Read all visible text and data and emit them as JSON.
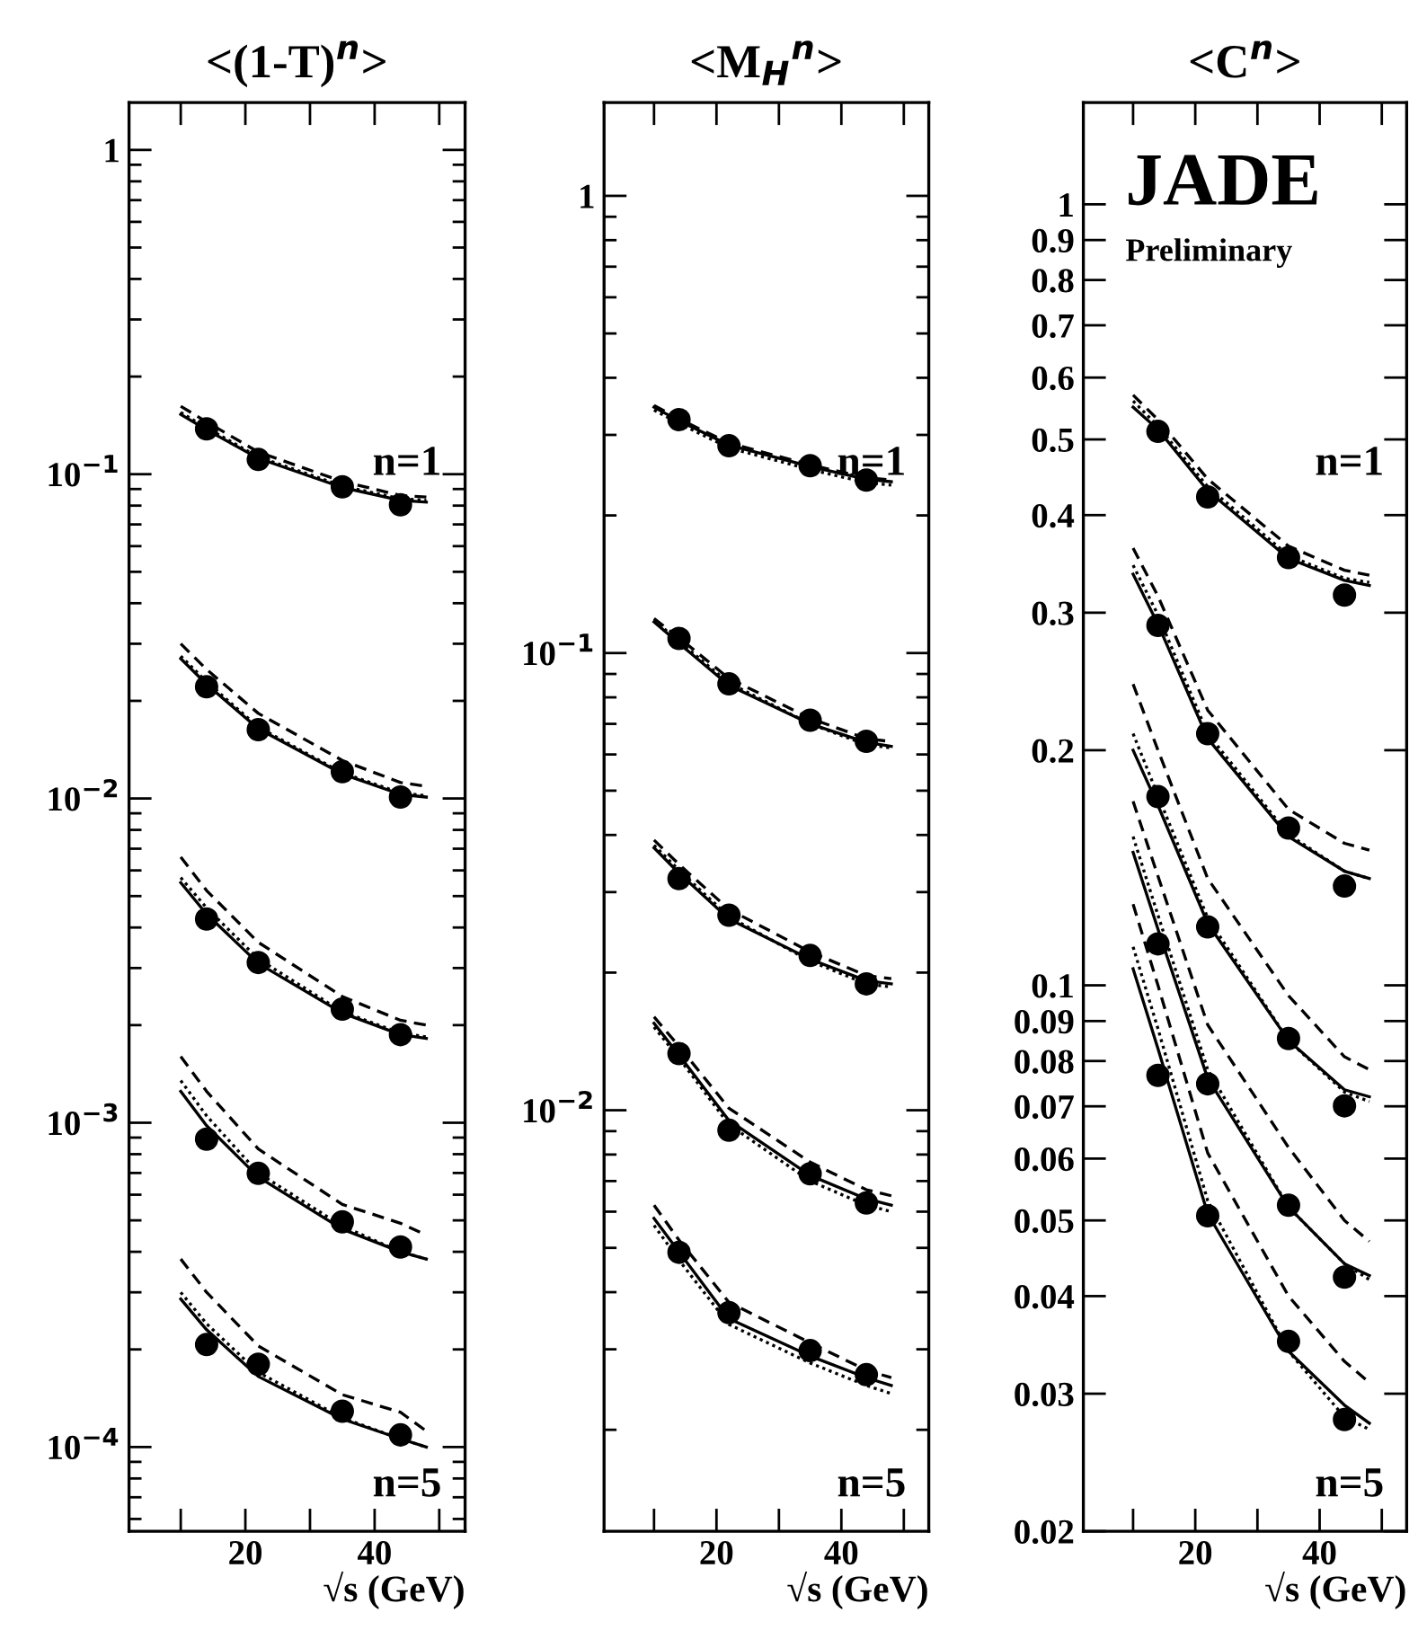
{
  "chart_data": [
    {
      "type": "line",
      "title": "<(1-T)$^{n}$>",
      "xlabel": "√s (GeV)",
      "log": "y",
      "xlim": [
        2,
        54
      ],
      "xticks": [
        {
          "value": 10,
          "label": null
        },
        20,
        {
          "value": 30,
          "label": null
        },
        40,
        {
          "value": 50,
          "label": null
        }
      ],
      "ylim": [
        5.5e-05,
        1.4
      ],
      "yticks": [
        {
          "value": 0.0001,
          "label": "10$^{−4}$"
        },
        {
          "value": 0.001,
          "label": "10$^{−3}$"
        },
        {
          "value": 0.01,
          "label": "10$^{−2}$"
        },
        {
          "value": 0.1,
          "label": "10$^{−1}$"
        },
        1
      ],
      "annotations": [
        "n=1",
        "n=5"
      ],
      "series": [
        {
          "type": "scatter",
          "marker": "circle",
          "color": "#000000",
          "x": [
            14,
            22,
            35,
            44
          ],
          "values": [
            0.138,
            0.111,
            0.0914,
            0.0805
          ]
        },
        {
          "type": "scatter",
          "marker": "circle",
          "color": "#000000",
          "x": [
            14,
            22,
            35,
            44
          ],
          "values": [
            0.0221,
            0.0163,
            0.0121,
            0.0101
          ]
        },
        {
          "type": "scatter",
          "marker": "circle",
          "color": "#000000",
          "x": [
            14,
            22,
            35,
            44
          ],
          "values": [
            0.00425,
            0.00312,
            0.00224,
            0.00187
          ]
        },
        {
          "type": "scatter",
          "marker": "circle",
          "color": "#000000",
          "x": [
            14,
            22,
            35,
            44
          ],
          "values": [
            0.00089,
            0.000698,
            0.000495,
            0.000414
          ]
        },
        {
          "type": "scatter",
          "marker": "circle",
          "color": "#000000",
          "x": [
            14,
            22,
            35,
            44
          ],
          "values": [
            0.000207,
            0.00018,
            0.000129,
            0.000109
          ]
        },
        {
          "line_style": "solid",
          "color": "#000000",
          "x": [
            10,
            14,
            22,
            35,
            44,
            48
          ],
          "values": [
            0.153,
            0.137,
            0.112,
            0.091,
            0.083,
            0.082
          ]
        },
        {
          "line_style": "dashed",
          "color": "#000000",
          "x": [
            10,
            14,
            22,
            35,
            44,
            48
          ],
          "values": [
            0.162,
            0.145,
            0.117,
            0.095,
            0.086,
            0.085
          ]
        },
        {
          "line_style": "dotted",
          "color": "#000000",
          "x": [
            10,
            14,
            22,
            35,
            44,
            48
          ],
          "values": [
            0.155,
            0.139,
            0.113,
            0.092,
            0.084,
            0.083
          ]
        },
        {
          "line_style": "solid",
          "color": "#000000",
          "x": [
            10,
            14,
            22,
            35,
            44,
            48
          ],
          "values": [
            0.027,
            0.0225,
            0.0164,
            0.0119,
            0.0103,
            0.0101
          ]
        },
        {
          "line_style": "dashed",
          "color": "#000000",
          "x": [
            10,
            14,
            22,
            35,
            44,
            48
          ],
          "values": [
            0.03,
            0.025,
            0.0183,
            0.0131,
            0.0112,
            0.0109
          ]
        },
        {
          "line_style": "dotted",
          "color": "#000000",
          "x": [
            10,
            14,
            22,
            35,
            44,
            48
          ],
          "values": [
            0.0275,
            0.0229,
            0.0166,
            0.012,
            0.0104,
            0.0102
          ]
        },
        {
          "line_style": "solid",
          "color": "#000000",
          "x": [
            10,
            14,
            22,
            35,
            44,
            48
          ],
          "values": [
            0.0055,
            0.0044,
            0.0031,
            0.00218,
            0.00187,
            0.00182
          ]
        },
        {
          "line_style": "dashed",
          "color": "#000000",
          "x": [
            10,
            14,
            22,
            35,
            44,
            48
          ],
          "values": [
            0.0066,
            0.0052,
            0.0036,
            0.00245,
            0.00207,
            0.002
          ]
        },
        {
          "line_style": "dotted",
          "color": "#000000",
          "x": [
            10,
            14,
            22,
            35,
            44,
            48
          ],
          "values": [
            0.0057,
            0.0046,
            0.0032,
            0.0022,
            0.00189,
            0.00184
          ]
        },
        {
          "line_style": "solid",
          "color": "#000000",
          "x": [
            10,
            14,
            22,
            35,
            44,
            48
          ],
          "values": [
            0.00125,
            0.00098,
            0.00068,
            0.00047,
            0.0004,
            0.00038
          ]
        },
        {
          "line_style": "dashed",
          "color": "#000000",
          "x": [
            10,
            14,
            22,
            35,
            44,
            48
          ],
          "values": [
            0.0016,
            0.00125,
            0.00083,
            0.00056,
            0.00049,
            0.00045
          ]
        },
        {
          "line_style": "dotted",
          "color": "#000000",
          "x": [
            10,
            14,
            22,
            35,
            44,
            48
          ],
          "values": [
            0.00135,
            0.00105,
            0.0007,
            0.00048,
            0.0004,
            0.00038
          ]
        },
        {
          "line_style": "solid",
          "color": "#000000",
          "x": [
            10,
            14,
            22,
            35,
            44,
            48
          ],
          "values": [
            0.000286,
            0.00023,
            0.000165,
            0.000122,
            0.000106,
            0.0001
          ]
        },
        {
          "line_style": "dashed",
          "color": "#000000",
          "x": [
            10,
            14,
            22,
            35,
            44,
            48
          ],
          "values": [
            0.00038,
            0.0003,
            0.000205,
            0.000145,
            0.000128,
            0.000112
          ]
        },
        {
          "line_style": "dotted",
          "color": "#000000",
          "x": [
            10,
            14,
            22,
            35,
            44,
            48
          ],
          "values": [
            0.0003,
            0.00024,
            0.00017,
            0.000123,
            0.000106,
            0.0001
          ]
        }
      ]
    },
    {
      "type": "line",
      "title": "<M$_{H}$$^{n}$>",
      "xlabel": "√s (GeV)",
      "log": "y",
      "xlim": [
        2,
        54
      ],
      "xticks": [
        {
          "value": 10,
          "label": null
        },
        20,
        {
          "value": 30,
          "label": null
        },
        40,
        {
          "value": 50,
          "label": null
        }
      ],
      "ylim": [
        0.0012,
        1.6
      ],
      "yticks": [
        {
          "value": 0.01,
          "label": "10$^{−2}$"
        },
        {
          "value": 0.1,
          "label": "10$^{−1}$"
        },
        1
      ],
      "annotations": [
        "n=1",
        "n=5"
      ],
      "series": [
        {
          "type": "scatter",
          "marker": "circle",
          "color": "#000000",
          "x": [
            14,
            22,
            35,
            44
          ],
          "values": [
            0.324,
            0.284,
            0.257,
            0.239
          ]
        },
        {
          "type": "scatter",
          "marker": "circle",
          "color": "#000000",
          "x": [
            14,
            22,
            35,
            44
          ],
          "values": [
            0.1076,
            0.0856,
            0.0713,
            0.0641
          ]
        },
        {
          "type": "scatter",
          "marker": "circle",
          "color": "#000000",
          "x": [
            14,
            22,
            35,
            44
          ],
          "values": [
            0.0321,
            0.0267,
            0.0218,
            0.0189
          ]
        },
        {
          "type": "scatter",
          "marker": "circle",
          "color": "#000000",
          "x": [
            14,
            22,
            35,
            44
          ],
          "values": [
            0.0133,
            0.00904,
            0.00726,
            0.00627
          ]
        },
        {
          "type": "scatter",
          "marker": "circle",
          "color": "#000000",
          "x": [
            14,
            22,
            35,
            44
          ],
          "values": [
            0.00489,
            0.00361,
            0.00298,
            0.00264
          ]
        },
        {
          "line_style": "solid",
          "color": "#000000",
          "x": [
            10,
            14,
            22,
            35,
            44,
            48
          ],
          "values": [
            0.345,
            0.322,
            0.285,
            0.256,
            0.24,
            0.237
          ]
        },
        {
          "line_style": "dashed",
          "color": "#000000",
          "x": [
            10,
            14,
            22,
            35,
            44,
            48
          ],
          "values": [
            0.348,
            0.325,
            0.288,
            0.258,
            0.242,
            0.239
          ]
        },
        {
          "line_style": "dotted",
          "color": "#000000",
          "x": [
            10,
            14,
            22,
            35,
            44,
            48
          ],
          "values": [
            0.34,
            0.318,
            0.281,
            0.252,
            0.236,
            0.233
          ]
        },
        {
          "line_style": "solid",
          "color": "#000000",
          "x": [
            10,
            14,
            22,
            35,
            44,
            48
          ],
          "values": [
            0.117,
            0.105,
            0.085,
            0.07,
            0.0638,
            0.0625
          ]
        },
        {
          "line_style": "dashed",
          "color": "#000000",
          "x": [
            10,
            14,
            22,
            35,
            44,
            48
          ],
          "values": [
            0.119,
            0.108,
            0.088,
            0.072,
            0.065,
            0.064
          ]
        },
        {
          "line_style": "dotted",
          "color": "#000000",
          "x": [
            10,
            14,
            22,
            35,
            44,
            48
          ],
          "values": [
            0.118,
            0.106,
            0.086,
            0.07,
            0.063,
            0.062
          ]
        },
        {
          "line_style": "solid",
          "color": "#000000",
          "x": [
            10,
            14,
            22,
            35,
            44,
            48
          ],
          "values": [
            0.0375,
            0.033,
            0.0262,
            0.0214,
            0.0192,
            0.0189
          ]
        },
        {
          "line_style": "dashed",
          "color": "#000000",
          "x": [
            10,
            14,
            22,
            35,
            44,
            48
          ],
          "values": [
            0.039,
            0.0345,
            0.0275,
            0.0222,
            0.0197,
            0.0194
          ]
        },
        {
          "line_style": "dotted",
          "color": "#000000",
          "x": [
            10,
            14,
            22,
            35,
            44,
            48
          ],
          "values": [
            0.038,
            0.0335,
            0.0265,
            0.0212,
            0.0189,
            0.0186
          ]
        },
        {
          "line_style": "solid",
          "color": "#000000",
          "x": [
            10,
            14,
            22,
            35,
            44,
            48
          ],
          "values": [
            0.0155,
            0.0132,
            0.0095,
            0.0072,
            0.0064,
            0.0062
          ]
        },
        {
          "line_style": "dashed",
          "color": "#000000",
          "x": [
            10,
            14,
            22,
            35,
            44,
            48
          ],
          "values": [
            0.016,
            0.0138,
            0.0101,
            0.0077,
            0.0067,
            0.0065
          ]
        },
        {
          "line_style": "dotted",
          "color": "#000000",
          "x": [
            10,
            14,
            22,
            35,
            44,
            48
          ],
          "values": [
            0.0152,
            0.013,
            0.0093,
            0.007,
            0.0062,
            0.006
          ]
        },
        {
          "line_style": "solid",
          "color": "#000000",
          "x": [
            10,
            14,
            22,
            35,
            44,
            48
          ],
          "values": [
            0.0058,
            0.0049,
            0.0035,
            0.0029,
            0.0026,
            0.0025
          ]
        },
        {
          "line_style": "dashed",
          "color": "#000000",
          "x": [
            10,
            14,
            22,
            35,
            44,
            48
          ],
          "values": [
            0.0062,
            0.0052,
            0.0038,
            0.0031,
            0.0027,
            0.0026
          ]
        },
        {
          "line_style": "dotted",
          "color": "#000000",
          "x": [
            10,
            14,
            22,
            35,
            44,
            48
          ],
          "values": [
            0.0056,
            0.0047,
            0.0034,
            0.0028,
            0.0025,
            0.0024
          ]
        }
      ]
    },
    {
      "type": "line",
      "title": "<C$^{n}$>",
      "xlabel": "√s (GeV)",
      "log": "y",
      "xlim": [
        2,
        54
      ],
      "xticks": [
        {
          "value": 10,
          "label": null
        },
        20,
        {
          "value": 30,
          "label": null
        },
        40,
        {
          "value": 50,
          "label": null
        }
      ],
      "ylim": [
        0.02,
        1.35
      ],
      "yticks": [
        0.02,
        0.03,
        0.04,
        0.05,
        0.06,
        0.07,
        0.08,
        0.09,
        0.1,
        0.2,
        0.3,
        0.4,
        0.5,
        0.6,
        0.7,
        0.8,
        0.9,
        1
      ],
      "annotations": [
        "n=1",
        "n=5",
        "JADE",
        "Preliminary"
      ],
      "series": [
        {
          "type": "scatter",
          "marker": "circle",
          "color": "#000000",
          "x": [
            14,
            22,
            35,
            44
          ],
          "values": [
            0.512,
            0.422,
            0.353,
            0.316
          ]
        },
        {
          "type": "scatter",
          "marker": "circle",
          "color": "#000000",
          "x": [
            14,
            22,
            35,
            44
          ],
          "values": [
            0.289,
            0.21,
            0.159,
            0.134
          ]
        },
        {
          "type": "scatter",
          "marker": "circle",
          "color": "#000000",
          "x": [
            14,
            22,
            35,
            44
          ],
          "values": [
            0.1744,
            0.1188,
            0.0855,
            0.0701
          ]
        },
        {
          "type": "scatter",
          "marker": "circle",
          "color": "#000000",
          "x": [
            14,
            22,
            35,
            44
          ],
          "values": [
            0.113,
            0.0748,
            0.0523,
            0.0423
          ]
        },
        {
          "type": "scatter",
          "marker": "circle",
          "color": "#000000",
          "x": [
            14,
            22,
            35,
            44
          ],
          "values": [
            0.0767,
            0.0507,
            0.035,
            0.0278
          ]
        },
        {
          "line_style": "solid",
          "color": "#000000",
          "x": [
            10,
            14,
            22,
            35,
            44,
            48
          ],
          "values": [
            0.55,
            0.515,
            0.43,
            0.352,
            0.33,
            0.325
          ]
        },
        {
          "line_style": "dashed",
          "color": "#000000",
          "x": [
            10,
            14,
            22,
            35,
            44,
            48
          ],
          "values": [
            0.57,
            0.53,
            0.445,
            0.365,
            0.34,
            0.335
          ]
        },
        {
          "line_style": "dotted",
          "color": "#000000",
          "x": [
            10,
            14,
            22,
            35,
            44,
            48
          ],
          "values": [
            0.56,
            0.52,
            0.435,
            0.355,
            0.332,
            0.328
          ]
        },
        {
          "line_style": "solid",
          "color": "#000000",
          "x": [
            10,
            14,
            22,
            35,
            44,
            48
          ],
          "values": [
            0.336,
            0.29,
            0.207,
            0.155,
            0.14,
            0.137
          ]
        },
        {
          "line_style": "dashed",
          "color": "#000000",
          "x": [
            10,
            14,
            22,
            35,
            44,
            48
          ],
          "values": [
            0.363,
            0.315,
            0.225,
            0.168,
            0.152,
            0.149
          ]
        },
        {
          "line_style": "dotted",
          "color": "#000000",
          "x": [
            10,
            14,
            22,
            35,
            44,
            48
          ],
          "values": [
            0.345,
            0.298,
            0.21,
            0.156,
            0.14,
            0.137
          ]
        },
        {
          "line_style": "solid",
          "color": "#000000",
          "x": [
            10,
            14,
            22,
            35,
            44,
            48
          ],
          "values": [
            0.2,
            0.17,
            0.12,
            0.085,
            0.0735,
            0.072
          ]
        },
        {
          "line_style": "dashed",
          "color": "#000000",
          "x": [
            10,
            14,
            22,
            35,
            44,
            48
          ],
          "values": [
            0.243,
            0.2,
            0.137,
            0.097,
            0.081,
            0.078
          ]
        },
        {
          "line_style": "dotted",
          "color": "#000000",
          "x": [
            10,
            14,
            22,
            35,
            44,
            48
          ],
          "values": [
            0.21,
            0.175,
            0.122,
            0.085,
            0.073,
            0.071
          ]
        },
        {
          "line_style": "solid",
          "color": "#000000",
          "x": [
            10,
            14,
            22,
            35,
            44,
            48
          ],
          "values": [
            0.148,
            0.118,
            0.076,
            0.052,
            0.044,
            0.0425
          ]
        },
        {
          "line_style": "dashed",
          "color": "#000000",
          "x": [
            10,
            14,
            22,
            35,
            44,
            48
          ],
          "values": [
            0.172,
            0.138,
            0.089,
            0.062,
            0.05,
            0.047
          ]
        },
        {
          "line_style": "dotted",
          "color": "#000000",
          "x": [
            10,
            14,
            22,
            35,
            44,
            48
          ],
          "values": [
            0.155,
            0.123,
            0.078,
            0.052,
            0.044,
            0.042
          ]
        },
        {
          "line_style": "solid",
          "color": "#000000",
          "x": [
            10,
            14,
            22,
            35,
            44,
            48
          ],
          "values": [
            0.105,
            0.083,
            0.051,
            0.034,
            0.029,
            0.0275
          ]
        },
        {
          "line_style": "dashed",
          "color": "#000000",
          "x": [
            10,
            14,
            22,
            35,
            44,
            48
          ],
          "values": [
            0.127,
            0.1,
            0.061,
            0.04,
            0.033,
            0.031
          ]
        },
        {
          "line_style": "dotted",
          "color": "#000000",
          "x": [
            10,
            14,
            22,
            35,
            44,
            48
          ],
          "values": [
            0.112,
            0.088,
            0.053,
            0.034,
            0.028,
            0.027
          ]
        }
      ]
    }
  ]
}
